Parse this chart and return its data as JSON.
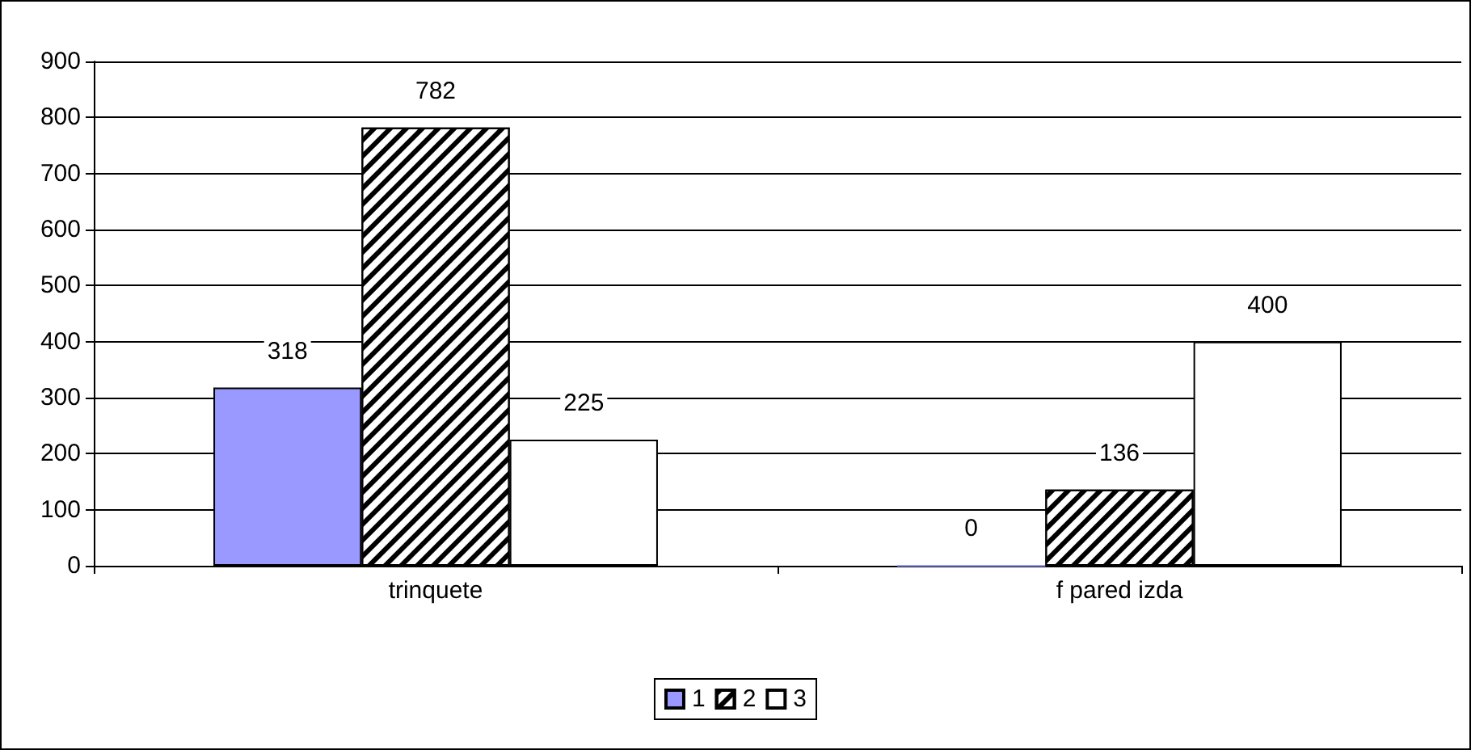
{
  "chart_data": {
    "type": "bar",
    "categories": [
      "trinquete",
      "f pared izda"
    ],
    "series": [
      {
        "name": "1",
        "color": "#9999ff",
        "values": [
          318,
          0
        ]
      },
      {
        "name": "2",
        "color": "#000000",
        "values": [
          782,
          136
        ]
      },
      {
        "name": "3",
        "color": "#ffffff",
        "values": [
          225,
          400
        ]
      }
    ],
    "ylim": [
      0,
      900
    ],
    "yticks": [
      0,
      100,
      200,
      300,
      400,
      500,
      600,
      700,
      800,
      900
    ],
    "grid": "y",
    "legend": "bottom",
    "data_labels": true
  }
}
